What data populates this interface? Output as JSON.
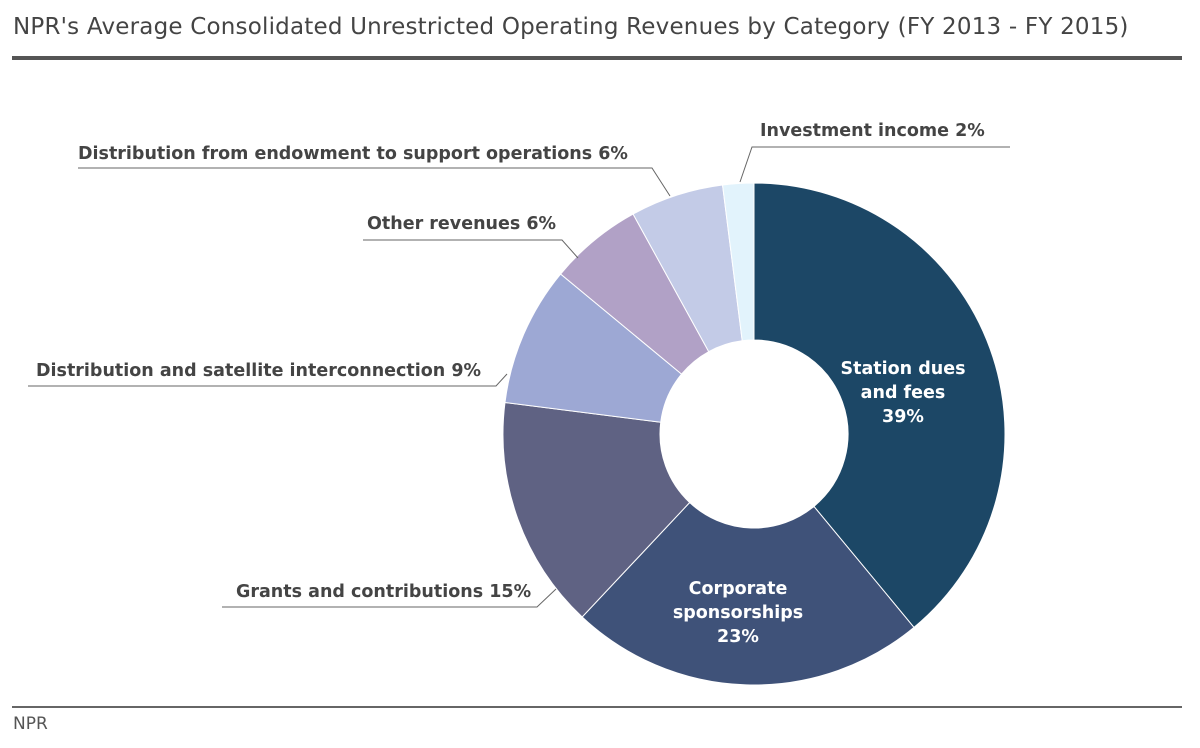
{
  "title": "NPR's Average Consolidated Unrestricted Operating Revenues by Category (FY 2013 - FY 2015)",
  "source": "NPR",
  "chart_data": {
    "type": "pie",
    "subtype": "donut",
    "title": "NPR's Average Consolidated Unrestricted Operating Revenues by Category (FY 2013 - FY 2015)",
    "start": "12 o'clock, clockwise",
    "slices": [
      {
        "label": "Station dues and fees",
        "value": 39,
        "color": "#1c4766",
        "label_lines": [
          "Station dues",
          "and fees",
          "39%"
        ]
      },
      {
        "label": "Corporate sponsorships",
        "value": 23,
        "color": "#3f5279",
        "label_lines": [
          "Corporate",
          "sponsorships",
          "23%"
        ]
      },
      {
        "label": "Grants and contributions",
        "value": 15,
        "color": "#5f6283",
        "label_text": "Grants and contributions 15%"
      },
      {
        "label": "Distribution and satellite interconnection",
        "value": 9,
        "color": "#9da8d4",
        "label_text": "Distribution and satellite interconnection 9%"
      },
      {
        "label": "Other revenues",
        "value": 6,
        "color": "#b1a1c6",
        "label_text": "Other revenues 6%"
      },
      {
        "label": "Distribution from endowment to support operations",
        "value": 6,
        "color": "#c3cbe7",
        "label_text": "Distribution from endowment to support operations 6%"
      },
      {
        "label": "Investment income",
        "value": 2,
        "color": "#e2f3fc",
        "label_text": "Investment income 2%"
      }
    ]
  }
}
